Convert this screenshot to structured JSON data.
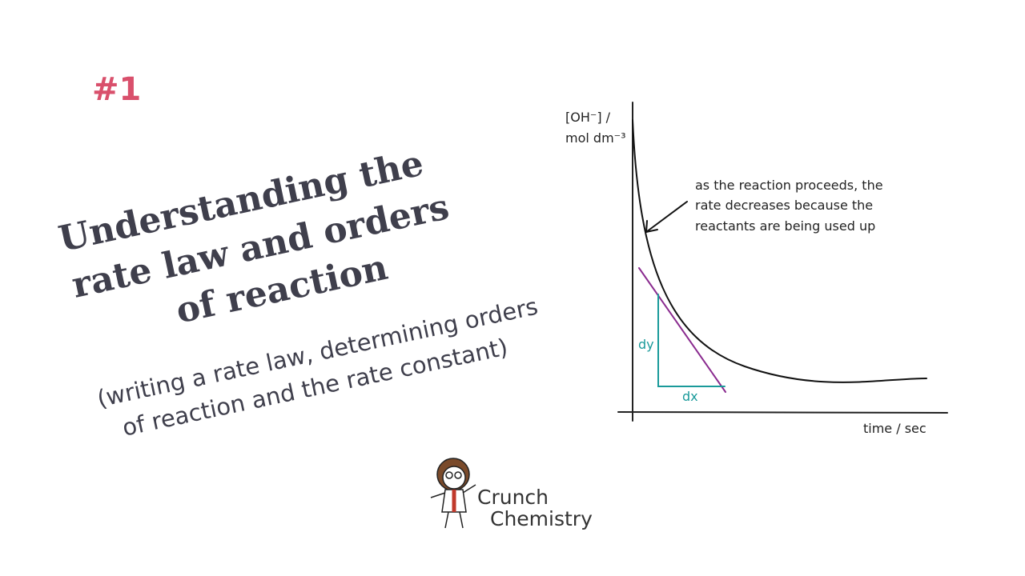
{
  "badge": "#1",
  "title": [
    "Understanding the",
    "rate law and orders",
    "of reaction"
  ],
  "subtitle": [
    "(writing a rate law, determining orders",
    "of reaction and the rate constant)"
  ],
  "graph": {
    "y_label": [
      "[OH⁻] /",
      "mol dm⁻³"
    ],
    "x_label": "time / sec",
    "annotation": [
      "as the reaction proceeds, the",
      "rate decreases because the",
      "reactants are being used up"
    ],
    "dy": "dy",
    "dx": "dx"
  },
  "logo": {
    "line1": "Crunch",
    "line2": "Chemistry"
  }
}
